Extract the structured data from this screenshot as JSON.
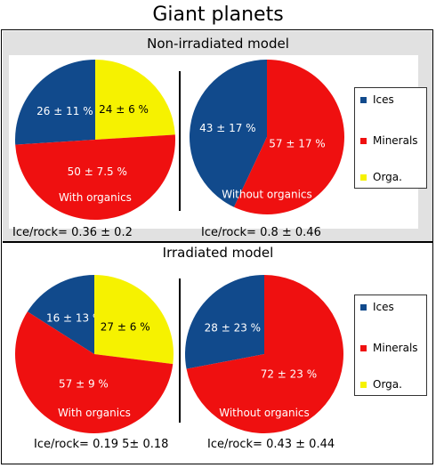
{
  "title": "Giant planets",
  "sections": {
    "non_irradiated": "Non-irradiated model",
    "irradiated": "Irradiated model"
  },
  "legend": {
    "ices": "Ices",
    "minerals": "Minerals",
    "orga": "Orga."
  },
  "colors": {
    "ices": "#114a8c",
    "minerals": "#ef1010",
    "orga": "#f6f200"
  },
  "chart_data": [
    {
      "type": "pie",
      "section": "Non-irradiated model",
      "caption": "With organics",
      "ratio_text": "Ice/rock= 0.36 ± 0.2",
      "slices": [
        {
          "category": "Ices",
          "value": 26,
          "label": "26 ± 11 %"
        },
        {
          "category": "Orga.",
          "value": 24,
          "label": "24 ± 6 %"
        },
        {
          "category": "Minerals",
          "value": 50,
          "label": "50 ± 7.5 %"
        }
      ]
    },
    {
      "type": "pie",
      "section": "Non-irradiated model",
      "caption": "Without organics",
      "ratio_text": "Ice/rock= 0.8 ± 0.46",
      "slices": [
        {
          "category": "Ices",
          "value": 43,
          "label": "43 ± 17 %"
        },
        {
          "category": "Minerals",
          "value": 57,
          "label": "57 ± 17 %"
        }
      ]
    },
    {
      "type": "pie",
      "section": "Irradiated model",
      "caption": "With organics",
      "ratio_text": "Ice/rock= 0.19 5± 0.18",
      "slices": [
        {
          "category": "Ices",
          "value": 16,
          "label": "16 ± 13 %"
        },
        {
          "category": "Orga.",
          "value": 27,
          "label": "27 ± 6 %"
        },
        {
          "category": "Minerals",
          "value": 57,
          "label": "57 ± 9 %"
        }
      ]
    },
    {
      "type": "pie",
      "section": "Irradiated model",
      "caption": "Without organics",
      "ratio_text": "Ice/rock= 0.43 ± 0.44",
      "slices": [
        {
          "category": "Ices",
          "value": 28,
          "label": "28 ± 23 %"
        },
        {
          "category": "Minerals",
          "value": 72,
          "label": "72 ± 23 %"
        }
      ]
    }
  ]
}
